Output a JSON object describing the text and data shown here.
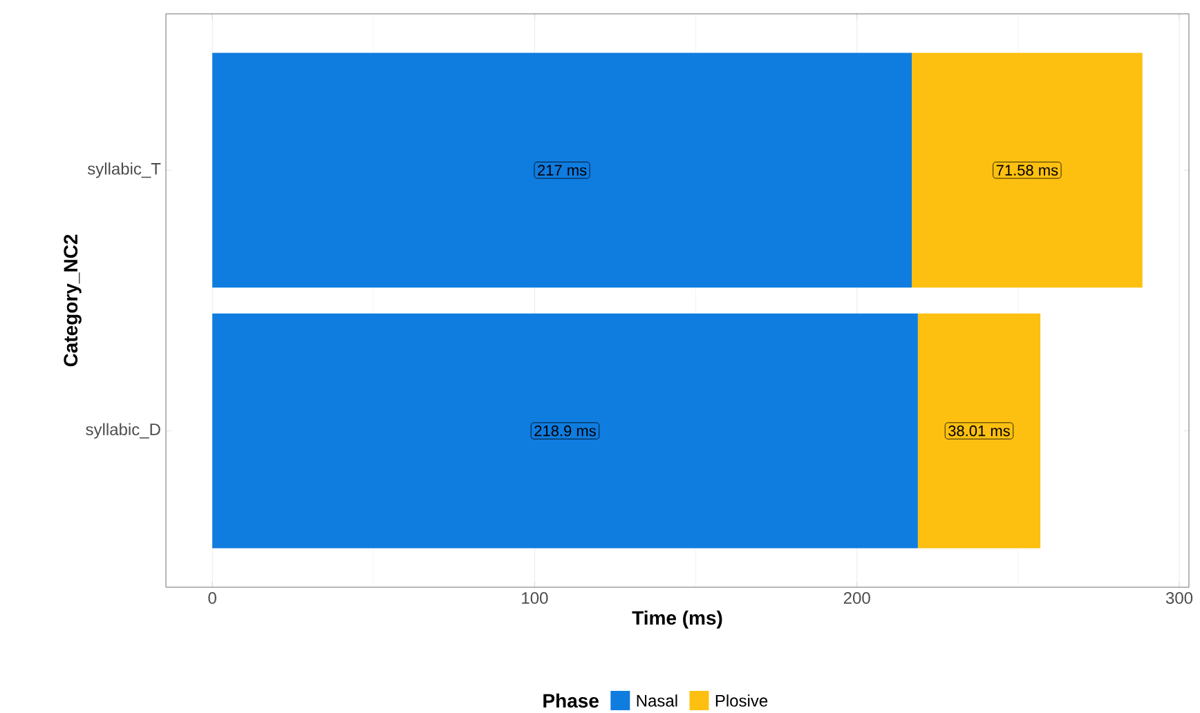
{
  "chart_data": {
    "type": "bar",
    "orientation": "horizontal",
    "stacked": true,
    "xlabel": "Time (ms)",
    "ylabel": "Category_NC2",
    "legend_title": "Phase",
    "legend": "bottom",
    "grid": true,
    "categories": [
      "syllabic_T",
      "syllabic_D"
    ],
    "series": [
      {
        "name": "Nasal",
        "color": "#0f7ce0",
        "values": [
          217,
          218.9
        ],
        "value_labels": [
          "217 ms",
          "218.9 ms"
        ]
      },
      {
        "name": "Plosive",
        "color": "#fdc010",
        "values": [
          71.58,
          38.01
        ],
        "value_labels": [
          "71.58 ms",
          "38.01 ms"
        ]
      }
    ],
    "xlim": [
      -14.4,
      303
    ],
    "xticks": [
      0,
      100,
      200,
      300
    ]
  }
}
